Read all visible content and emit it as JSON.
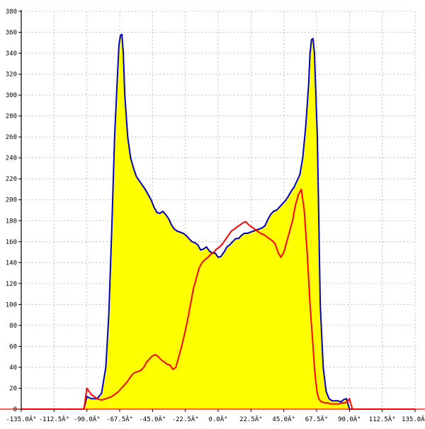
{
  "chart_data": {
    "type": "area",
    "title": "",
    "xlabel": "",
    "ylabel": "",
    "xlim": [
      -135,
      135
    ],
    "ylim": [
      0,
      380
    ],
    "grid": true,
    "x_ticks": [
      {
        "value": -135,
        "label": "-135.0Â°"
      },
      {
        "value": -112.5,
        "label": "-112.5Â°"
      },
      {
        "value": -90,
        "label": "-90.0Â°"
      },
      {
        "value": -67.5,
        "label": "-67.5Â°"
      },
      {
        "value": -45,
        "label": "-45.0Â°"
      },
      {
        "value": -22.5,
        "label": "-22.5Â°"
      },
      {
        "value": 0,
        "label": "0.0Â°"
      },
      {
        "value": 22.5,
        "label": "22.5Â°"
      },
      {
        "value": 45,
        "label": "45.0Â°"
      },
      {
        "value": 67.5,
        "label": "67.5Â°"
      },
      {
        "value": 90,
        "label": "90.0Â°"
      },
      {
        "value": 112.5,
        "label": "112.5Â°"
      },
      {
        "value": 135,
        "label": "135.0Â°"
      }
    ],
    "y_ticks": [
      {
        "value": 0,
        "label": "0"
      },
      {
        "value": 20,
        "label": "20"
      },
      {
        "value": 40,
        "label": "40"
      },
      {
        "value": 60,
        "label": "60"
      },
      {
        "value": 80,
        "label": "80"
      },
      {
        "value": 100,
        "label": "100"
      },
      {
        "value": 120,
        "label": "120"
      },
      {
        "value": 140,
        "label": "140"
      },
      {
        "value": 160,
        "label": "160"
      },
      {
        "value": 180,
        "label": "180"
      },
      {
        "value": 200,
        "label": "200"
      },
      {
        "value": 220,
        "label": "220"
      },
      {
        "value": 240,
        "label": "240"
      },
      {
        "value": 260,
        "label": "260"
      },
      {
        "value": 280,
        "label": "280"
      },
      {
        "value": 300,
        "label": "300"
      },
      {
        "value": 320,
        "label": "320"
      },
      {
        "value": 340,
        "label": "340"
      },
      {
        "value": 360,
        "label": "360"
      },
      {
        "value": 380,
        "label": "380"
      }
    ],
    "series": [
      {
        "color": "#0000c8",
        "fill": "#ffff00",
        "x": [
          -135,
          -92,
          -90,
          -87,
          -83,
          -80,
          -77,
          -75,
          -73,
          -71,
          -69,
          -68,
          -67,
          -66,
          -65,
          -64,
          -62,
          -60,
          -58,
          -56,
          -54,
          -52,
          -50,
          -48,
          -46,
          -44,
          -42,
          -40,
          -38,
          -36,
          -34,
          -32,
          -30,
          -28,
          -26,
          -24,
          -22,
          -20,
          -18,
          -16,
          -14,
          -12,
          -10,
          -8,
          -6,
          -4,
          -2,
          0,
          2,
          4,
          6,
          8,
          10,
          12,
          14,
          16,
          18,
          20,
          22,
          24,
          26,
          28,
          30,
          32,
          34,
          36,
          38,
          40,
          42,
          44,
          46,
          48,
          50,
          52,
          54,
          56,
          58,
          60,
          62,
          63,
          64,
          65,
          66,
          67,
          68,
          69,
          70,
          72,
          74,
          76,
          78,
          80,
          82,
          84,
          86,
          88,
          90,
          92,
          135
        ],
        "values": [
          0,
          0,
          12,
          10,
          10,
          15,
          40,
          90,
          170,
          260,
          320,
          348,
          357,
          358,
          340,
          300,
          260,
          240,
          230,
          222,
          218,
          214,
          210,
          205,
          200,
          193,
          188,
          187,
          189,
          186,
          182,
          176,
          172,
          170,
          169,
          168,
          166,
          163,
          160,
          159,
          157,
          152,
          153,
          155,
          151,
          149,
          149,
          145,
          146,
          150,
          155,
          157,
          160,
          163,
          163,
          166,
          168,
          168,
          169,
          170,
          171,
          172,
          173,
          175,
          181,
          186,
          189,
          190,
          193,
          196,
          199,
          203,
          208,
          212,
          218,
          224,
          240,
          270,
          310,
          340,
          353,
          354,
          340,
          300,
          260,
          180,
          100,
          40,
          17,
          10,
          8,
          8,
          8,
          7,
          9,
          10,
          0,
          0,
          0
        ]
      },
      {
        "color": "#ff0000",
        "x": [
          -135,
          -92,
          -90,
          -89,
          -87,
          -85,
          -83,
          -81,
          -79,
          -77,
          -75,
          -73,
          -71,
          -69,
          -67,
          -65,
          -63,
          -61,
          -59,
          -57,
          -55,
          -53,
          -51,
          -49,
          -47,
          -45,
          -43,
          -41,
          -39,
          -37,
          -35,
          -33,
          -31,
          -29,
          -27,
          -25,
          -23,
          -21,
          -19,
          -17,
          -15,
          -13,
          -11,
          -9,
          -7,
          -5,
          -3,
          -1,
          1,
          3,
          5,
          7,
          9,
          11,
          13,
          15,
          17,
          19,
          21,
          23,
          25,
          27,
          29,
          31,
          33,
          35,
          37,
          39,
          41,
          43,
          45,
          47,
          49,
          51,
          53,
          55,
          57,
          59,
          61,
          63,
          65,
          66,
          67,
          68,
          69,
          70,
          71,
          73,
          75,
          77,
          79,
          81,
          83,
          85,
          87,
          89,
          90,
          92,
          135
        ],
        "values": [
          0,
          0,
          20,
          18,
          14,
          12,
          10,
          9,
          9,
          10,
          11,
          12,
          14,
          16,
          19,
          22,
          25,
          29,
          33,
          35,
          36,
          37,
          40,
          45,
          48,
          51,
          52,
          50,
          47,
          45,
          43,
          42,
          38,
          40,
          50,
          60,
          72,
          85,
          100,
          115,
          125,
          135,
          140,
          143,
          145,
          148,
          150,
          153,
          155,
          158,
          162,
          166,
          170,
          172,
          174,
          176,
          178,
          179,
          176,
          174,
          172,
          170,
          168,
          167,
          165,
          163,
          161,
          158,
          150,
          145,
          150,
          160,
          170,
          180,
          195,
          205,
          210,
          190,
          150,
          100,
          60,
          40,
          25,
          15,
          10,
          8,
          7,
          6,
          6,
          5,
          5,
          5,
          5,
          6,
          6,
          8,
          10,
          0,
          0
        ]
      }
    ]
  }
}
